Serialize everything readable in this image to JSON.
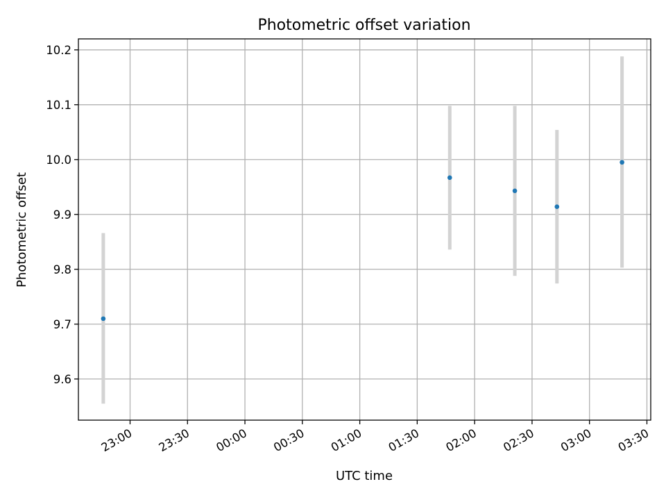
{
  "chart_data": {
    "type": "scatter",
    "title": "Photometric offset variation",
    "xlabel": "UTC time",
    "ylabel": "Photometric offset",
    "x_axis": {
      "kind": "time",
      "range": [
        "2023-01-01T22:33",
        "2023-01-02T03:32"
      ],
      "ticks": [
        {
          "value": "2023-01-01T23:00",
          "label": "23:00"
        },
        {
          "value": "2023-01-01T23:30",
          "label": "23:30"
        },
        {
          "value": "2023-01-02T00:00",
          "label": "00:00"
        },
        {
          "value": "2023-01-02T00:30",
          "label": "00:30"
        },
        {
          "value": "2023-01-02T01:00",
          "label": "01:00"
        },
        {
          "value": "2023-01-02T01:30",
          "label": "01:30"
        },
        {
          "value": "2023-01-02T02:00",
          "label": "02:00"
        },
        {
          "value": "2023-01-02T02:30",
          "label": "02:30"
        },
        {
          "value": "2023-01-02T03:00",
          "label": "03:00"
        },
        {
          "value": "2023-01-02T03:30",
          "label": "03:30"
        }
      ]
    },
    "y_axis": {
      "range": [
        9.525,
        10.22
      ],
      "ticks": [
        {
          "value": 9.6,
          "label": "9.6"
        },
        {
          "value": 9.7,
          "label": "9.7"
        },
        {
          "value": 9.8,
          "label": "9.8"
        },
        {
          "value": 9.9,
          "label": "9.9"
        },
        {
          "value": 10.0,
          "label": "10.0"
        },
        {
          "value": 10.1,
          "label": "10.1"
        },
        {
          "value": 10.2,
          "label": "10.2"
        }
      ]
    },
    "grid": true,
    "points": [
      {
        "x": "2023-01-01T22:46",
        "y": 9.71,
        "err_low": 9.555,
        "err_high": 9.866
      },
      {
        "x": "2023-01-02T01:47",
        "y": 9.967,
        "err_low": 9.836,
        "err_high": 10.098
      },
      {
        "x": "2023-01-02T02:21",
        "y": 9.943,
        "err_low": 9.788,
        "err_high": 10.098
      },
      {
        "x": "2023-01-02T02:43",
        "y": 9.914,
        "err_low": 9.774,
        "err_high": 10.054
      },
      {
        "x": "2023-01-02T03:17",
        "y": 9.995,
        "err_low": 9.803,
        "err_high": 10.188
      }
    ],
    "colors": {
      "marker": "#1f77b4",
      "errorbar": "#d3d3d3",
      "grid": "#b0b0b0",
      "axes": "#000000"
    }
  }
}
